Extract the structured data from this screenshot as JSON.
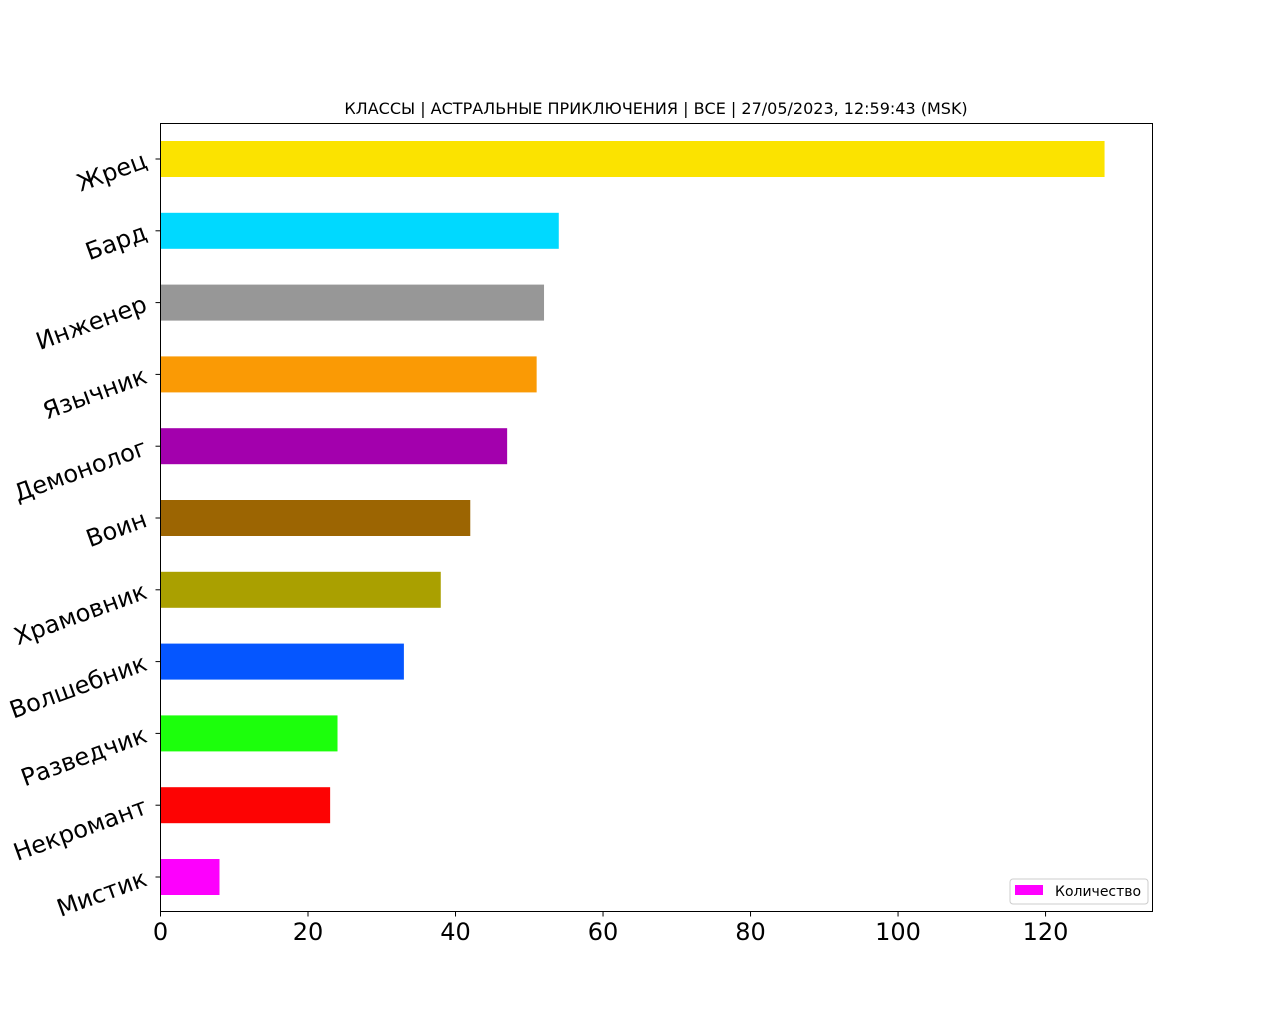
{
  "chart_data": {
    "type": "bar",
    "orientation": "horizontal",
    "title": "КЛАССЫ | АСТРАЛЬНЫЕ ПРИКЛЮЧЕНИЯ | ВСЕ | 27/05/2023, 12:59:43 (MSK)",
    "categories": [
      "Жрец",
      "Бард",
      "Инженер",
      "Язычник",
      "Демонолог",
      "Воин",
      "Храмовник",
      "Волшебник",
      "Разведчик",
      "Некромант",
      "Мистик"
    ],
    "series": [
      {
        "name": "Количество",
        "values": [
          128,
          54,
          52,
          51,
          47,
          42,
          38,
          33,
          24,
          23,
          8
        ]
      }
    ],
    "bar_colors": [
      "#fbe300",
      "#00d9ff",
      "#979797",
      "#fa9a05",
      "#a300ad",
      "#9c6502",
      "#aaa000",
      "#0556ff",
      "#1cff0c",
      "#fd0303",
      "#fd00fd"
    ],
    "legend_color": "#ff00ff",
    "xticks": [
      0,
      20,
      40,
      60,
      80,
      100,
      120
    ],
    "xlim": [
      0,
      134.5
    ],
    "xlabel": "",
    "ylabel": "",
    "grid": false,
    "legend_position": "lower-right"
  }
}
